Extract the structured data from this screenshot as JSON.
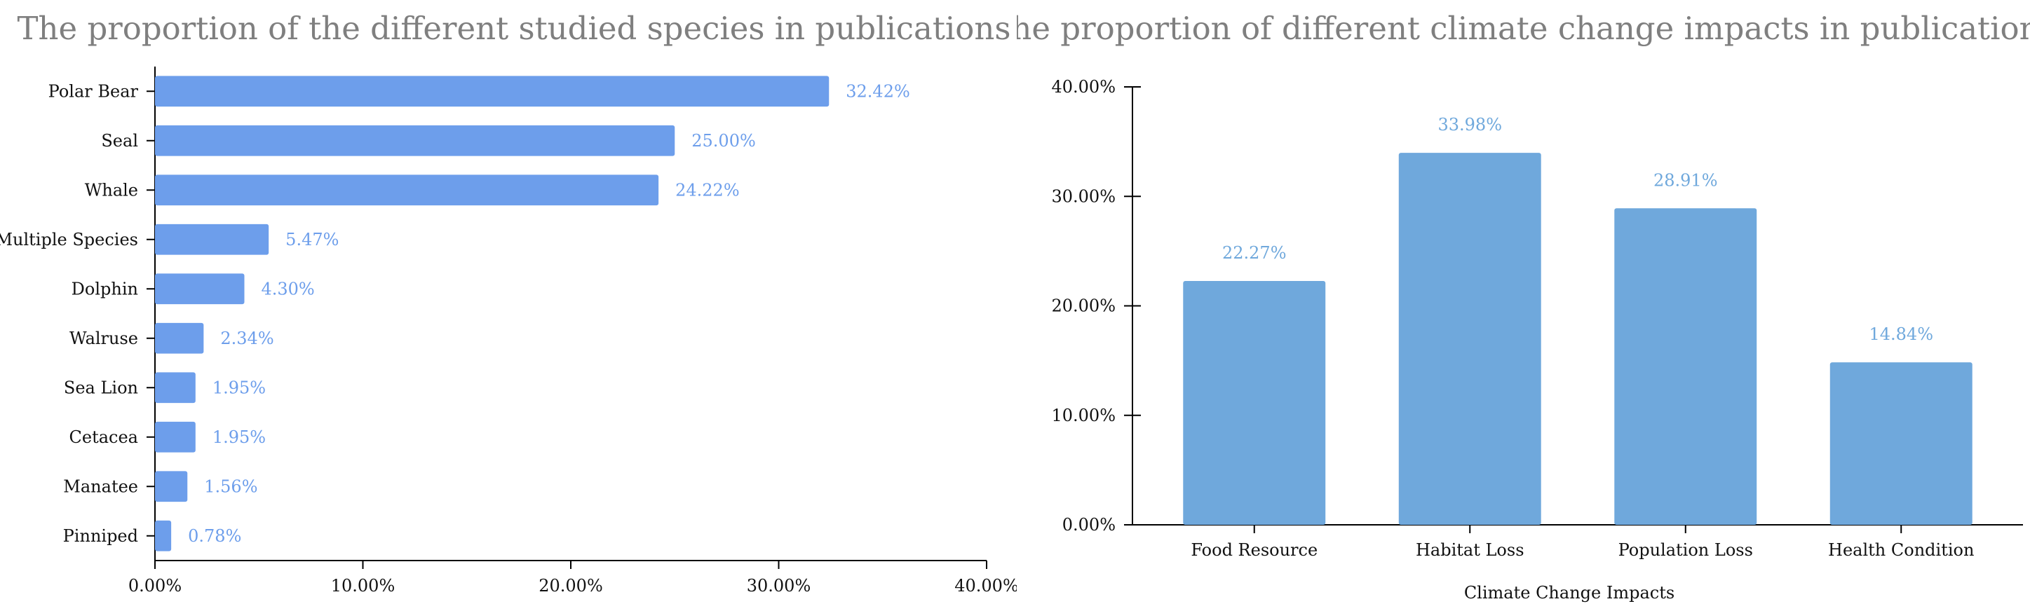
{
  "chart_data": [
    {
      "type": "bar",
      "orientation": "horizontal",
      "title": "The proportion of the different studied species in publications",
      "categories": [
        "Polar Bear",
        "Seal",
        "Whale",
        "Multiple Species",
        "Dolphin",
        "Walruse",
        "Sea Lion",
        "Cetacea",
        "Manatee",
        "Pinniped"
      ],
      "values": [
        32.42,
        25.0,
        24.22,
        5.47,
        4.3,
        2.34,
        1.95,
        1.95,
        1.56,
        0.78
      ],
      "data_labels": [
        "32.42%",
        "25.00%",
        "24.22%",
        "5.47%",
        "4.30%",
        "2.34%",
        "1.95%",
        "1.95%",
        "1.56%",
        "0.78%"
      ],
      "xlabel": "",
      "ylabel": "",
      "xlim": [
        0,
        40
      ],
      "xticks": [
        0,
        10,
        20,
        30,
        40
      ],
      "xtick_labels": [
        "0.00%",
        "10.00%",
        "20.00%",
        "30.00%",
        "40.00%"
      ],
      "grid": false,
      "colors": {
        "bar": "#6d9eeb",
        "data_label": "#6d9eeb",
        "title": "#7f7f7f"
      }
    },
    {
      "type": "bar",
      "orientation": "vertical",
      "title": "The proportion of different climate change impacts in publications",
      "categories": [
        "Food Resource",
        "Habitat Loss",
        "Population Loss",
        "Health Condition"
      ],
      "values": [
        22.27,
        33.98,
        28.91,
        14.84
      ],
      "data_labels": [
        "22.27%",
        "33.98%",
        "28.91%",
        "14.84%"
      ],
      "xlabel": "Climate Change Impacts",
      "ylabel": "",
      "ylim": [
        0,
        40
      ],
      "yticks": [
        0,
        10,
        20,
        30,
        40
      ],
      "ytick_labels": [
        "0.00%",
        "10.00%",
        "20.00%",
        "30.00%",
        "40.00%"
      ],
      "grid": false,
      "colors": {
        "bar": "#6fa8dc",
        "data_label": "#6fa8dc",
        "title": "#7f7f7f"
      }
    }
  ]
}
